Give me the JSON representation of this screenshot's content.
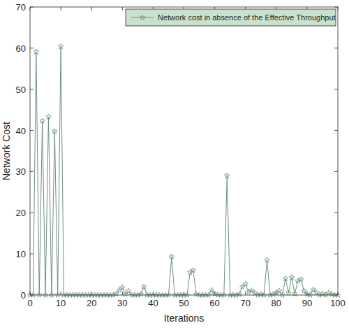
{
  "chart_data": {
    "type": "line",
    "x_label": "Iterations",
    "y_label": "Network Cost",
    "x": [
      0,
      1,
      2,
      3,
      4,
      5,
      6,
      7,
      8,
      9,
      10,
      11,
      12,
      13,
      14,
      15,
      16,
      17,
      18,
      19,
      20,
      21,
      22,
      23,
      24,
      25,
      26,
      27,
      28,
      29,
      30,
      31,
      32,
      33,
      34,
      35,
      36,
      37,
      38,
      39,
      40,
      41,
      42,
      43,
      44,
      45,
      46,
      47,
      48,
      49,
      50,
      51,
      52,
      53,
      54,
      55,
      56,
      57,
      58,
      59,
      60,
      61,
      62,
      63,
      64,
      65,
      66,
      67,
      68,
      69,
      70,
      71,
      72,
      73,
      74,
      75,
      76,
      77,
      78,
      79,
      80,
      81,
      82,
      83,
      84,
      85,
      86,
      87,
      88,
      89,
      90,
      91,
      92,
      93,
      94,
      95,
      96,
      97,
      98,
      99,
      100
    ],
    "series": [
      {
        "name": "Network cost in absence of the Effective Throughput",
        "color": "#6f8f80",
        "marker": "star",
        "line_style": "solid",
        "values": [
          0,
          0,
          59.1,
          0,
          42.3,
          0,
          43.3,
          0,
          39.8,
          0,
          60.4,
          0,
          0,
          0,
          0,
          0,
          0,
          0,
          0,
          0,
          0,
          0,
          0,
          0,
          0,
          0,
          0,
          0,
          0.3,
          1.2,
          1.8,
          0.2,
          1.0,
          0,
          0,
          0,
          0.2,
          2.0,
          0,
          0,
          0,
          0,
          0,
          0,
          0,
          0,
          9.3,
          0,
          0,
          0,
          0,
          0,
          5.5,
          6.0,
          0.2,
          0,
          0,
          0,
          0,
          1.2,
          0.3,
          0,
          0,
          0,
          29.0,
          0,
          0,
          0,
          0.2,
          2.0,
          2.7,
          0.8,
          1.1,
          0.5,
          0,
          0.2,
          0,
          8.5,
          0,
          0.2,
          0.6,
          1.0,
          0,
          4.0,
          0.5,
          4.3,
          0.3,
          3.4,
          3.8,
          1.0,
          0.2,
          0,
          1.3,
          0.6,
          0,
          0.3,
          0,
          0.5,
          0.2,
          0,
          0
        ]
      }
    ],
    "xlim": [
      0,
      100
    ],
    "xticks": [
      0,
      10,
      20,
      30,
      40,
      50,
      60,
      70,
      80,
      90,
      100
    ],
    "ylim": [
      0,
      70
    ],
    "yticks": [
      0,
      10,
      20,
      30,
      40,
      50,
      60,
      70
    ],
    "grid": false,
    "legend": "top-right"
  }
}
